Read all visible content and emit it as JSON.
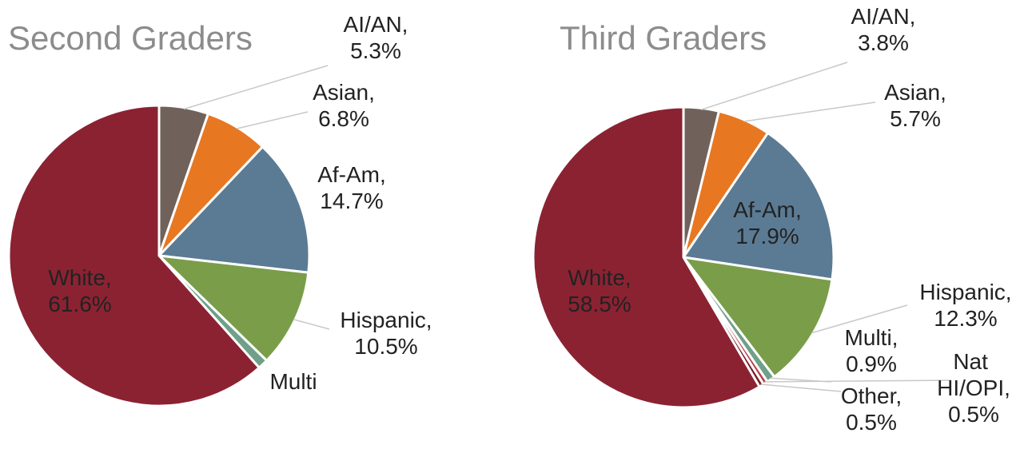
{
  "chart_data": [
    {
      "type": "pie",
      "title": "Second Graders",
      "categories": [
        "AI/AN,",
        "Asian,",
        "Af-Am,",
        "Hispanic,",
        "Multi",
        "White,"
      ],
      "values": [
        5.3,
        6.8,
        14.7,
        10.5,
        1.1,
        61.6
      ],
      "value_labels": [
        "5.3%",
        "6.8%",
        "14.7%",
        "10.5%",
        null,
        "61.6%"
      ],
      "colors": [
        "#70625a",
        "#e87722",
        "#5b7b94",
        "#7a9d4a",
        "#6fa08a",
        "#8b2232"
      ]
    },
    {
      "type": "pie",
      "title": "Third Graders",
      "categories": [
        "AI/AN,",
        "Asian,",
        "Af-Am,",
        "Hispanic,",
        "Multi,",
        "Nat HI/OPI,",
        "Other,",
        "White,"
      ],
      "values": [
        3.8,
        5.7,
        17.9,
        12.3,
        0.9,
        0.5,
        0.5,
        58.5
      ],
      "value_labels": [
        "3.8%",
        "5.7%",
        "17.9%",
        "12.3%",
        "0.9%",
        "0.5%",
        "0.5%",
        "58.5%"
      ],
      "colors": [
        "#70625a",
        "#e87722",
        "#5b7b94",
        "#7a9d4a",
        "#6fa08a",
        "#b4434a",
        "#7a1c28",
        "#8b2232"
      ]
    }
  ]
}
